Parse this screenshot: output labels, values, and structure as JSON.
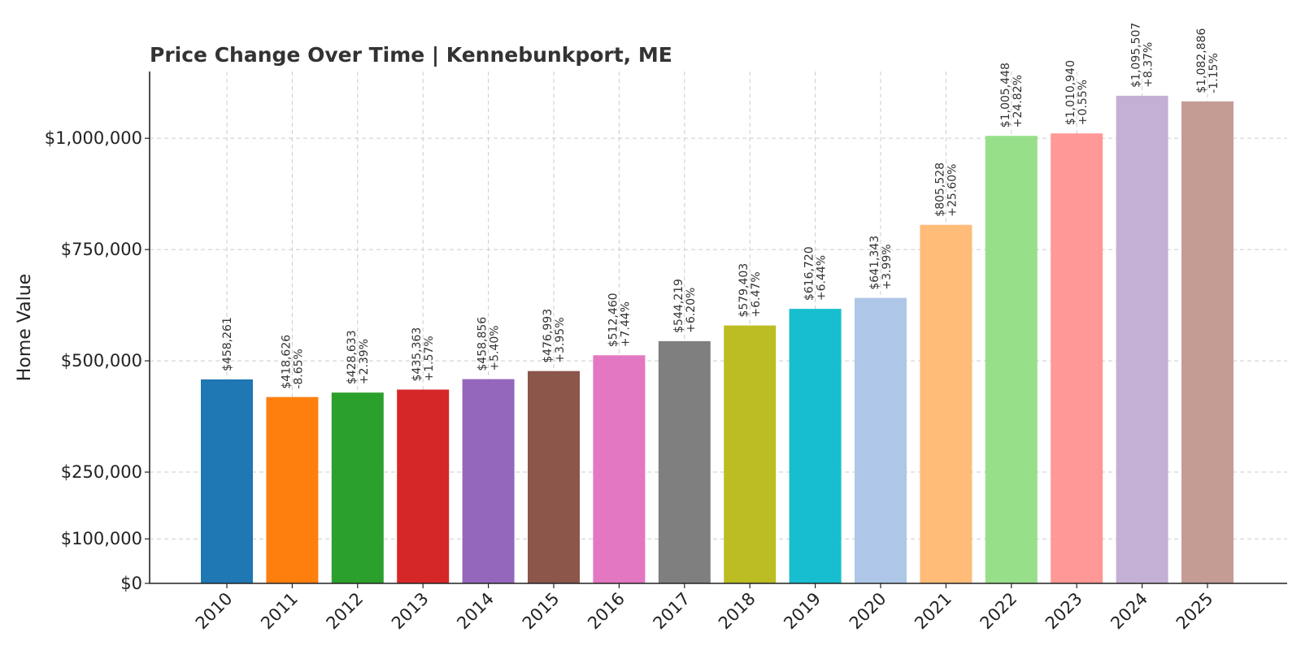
{
  "chart_data": {
    "type": "bar",
    "title": "Price Change Over Time | Kennebunkport, ME",
    "xlabel": "",
    "ylabel": "Home Value",
    "categories": [
      "2010",
      "2011",
      "2012",
      "2013",
      "2014",
      "2015",
      "2016",
      "2017",
      "2018",
      "2019",
      "2020",
      "2021",
      "2022",
      "2023",
      "2024",
      "2025"
    ],
    "values": [
      458261,
      418626,
      428633,
      435363,
      458856,
      476993,
      512460,
      544219,
      579403,
      616720,
      641343,
      805528,
      1005448,
      1010940,
      1095507,
      1082886
    ],
    "value_labels": [
      "$458,261",
      "$418,626",
      "$428,633",
      "$435,363",
      "$458,856",
      "$476,993",
      "$512,460",
      "$544,219",
      "$579,403",
      "$616,720",
      "$641,343",
      "$805,528",
      "$1,005,448",
      "$1,010,940",
      "$1,095,507",
      "$1,082,886"
    ],
    "change_labels": [
      "",
      "-8.65%",
      "+2.39%",
      "+1.57%",
      "+5.40%",
      "+3.95%",
      "+7.44%",
      "+6.20%",
      "+6.47%",
      "+6.44%",
      "+3.99%",
      "+25.60%",
      "+24.82%",
      "+0.55%",
      "+8.37%",
      "-1.15%"
    ],
    "colors": [
      "#1f77b4",
      "#ff7f0e",
      "#2ca02c",
      "#d62728",
      "#9467bd",
      "#8c564b",
      "#e377c2",
      "#7f7f7f",
      "#bcbd22",
      "#17becf",
      "#aec7e8",
      "#ffbb78",
      "#98df8a",
      "#ff9896",
      "#c5b0d5",
      "#c49c94"
    ],
    "yticks": [
      0,
      100000,
      250000,
      500000,
      750000,
      1000000
    ],
    "ytick_labels": [
      "$0",
      "$100,000",
      "$250,000",
      "$500,000",
      "$750,000",
      "$1,000,000"
    ],
    "ylim": [
      0,
      1150000
    ],
    "grid": true
  }
}
